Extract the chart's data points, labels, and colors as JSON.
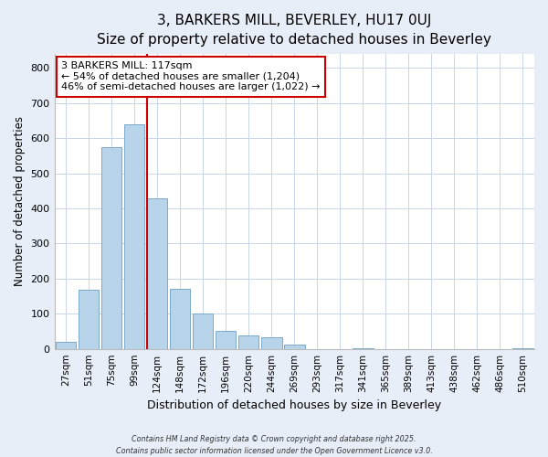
{
  "title": "3, BARKERS MILL, BEVERLEY, HU17 0UJ",
  "subtitle": "Size of property relative to detached houses in Beverley",
  "xlabel": "Distribution of detached houses by size in Beverley",
  "ylabel": "Number of detached properties",
  "bar_labels": [
    "27sqm",
    "51sqm",
    "75sqm",
    "99sqm",
    "124sqm",
    "148sqm",
    "172sqm",
    "196sqm",
    "220sqm",
    "244sqm",
    "269sqm",
    "293sqm",
    "317sqm",
    "341sqm",
    "365sqm",
    "389sqm",
    "413sqm",
    "438sqm",
    "462sqm",
    "486sqm",
    "510sqm"
  ],
  "bar_values": [
    20,
    168,
    575,
    640,
    430,
    172,
    100,
    50,
    38,
    33,
    12,
    0,
    0,
    2,
    0,
    0,
    0,
    0,
    0,
    0,
    2
  ],
  "bar_color": "#b8d4ea",
  "bar_edge_color": "#7aaac8",
  "vline_x_idx": 4,
  "vline_color": "#cc0000",
  "annotation_text": "3 BARKERS MILL: 117sqm\n← 54% of detached houses are smaller (1,204)\n46% of semi-detached houses are larger (1,022) →",
  "annotation_box_color": "#ffffff",
  "annotation_box_edge": "#cc0000",
  "ylim": [
    0,
    840
  ],
  "yticks": [
    0,
    100,
    200,
    300,
    400,
    500,
    600,
    700,
    800
  ],
  "footer1": "Contains HM Land Registry data © Crown copyright and database right 2025.",
  "footer2": "Contains public sector information licensed under the Open Government Licence v3.0.",
  "bg_color": "#e8eef8",
  "plot_bg_color": "#ffffff",
  "grid_color": "#c8d4e8",
  "title_fontsize": 11,
  "subtitle_fontsize": 9.5
}
